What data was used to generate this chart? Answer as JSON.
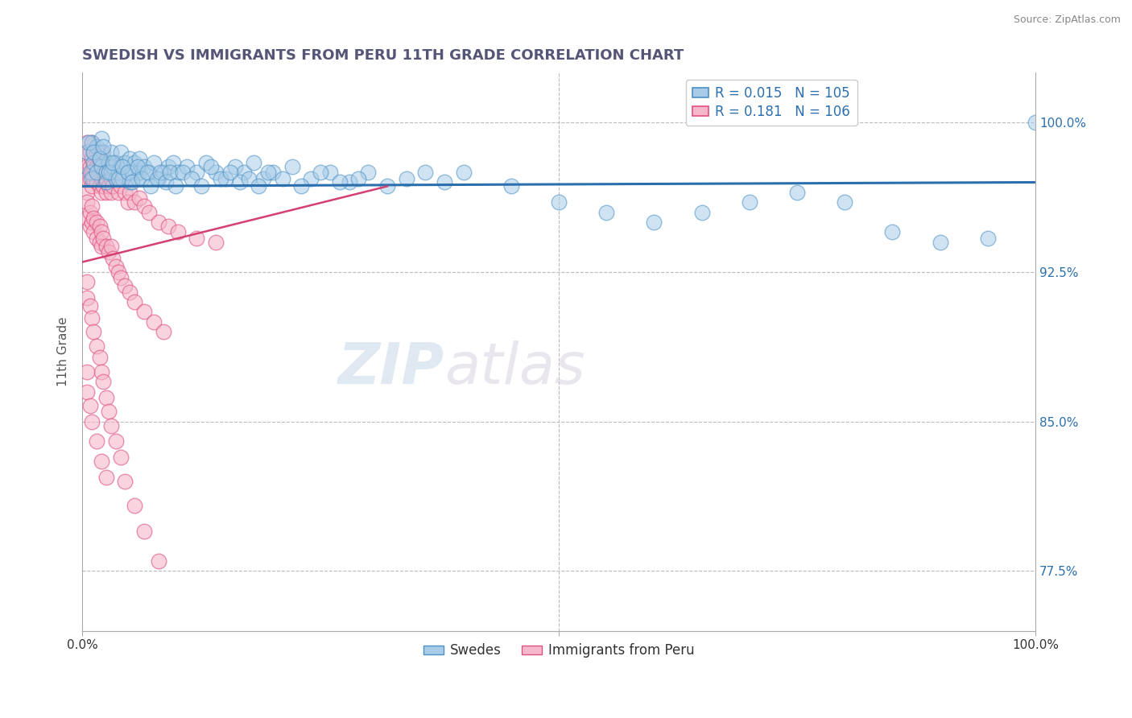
{
  "title": "SWEDISH VS IMMIGRANTS FROM PERU 11TH GRADE CORRELATION CHART",
  "source": "Source: ZipAtlas.com",
  "ylabel": "11th Grade",
  "y_ticks": [
    0.775,
    0.85,
    0.925,
    1.0
  ],
  "y_tick_labels": [
    "77.5%",
    "85.0%",
    "92.5%",
    "100.0%"
  ],
  "x_range": [
    0.0,
    1.0
  ],
  "y_range": [
    0.745,
    1.025
  ],
  "legend_blue_R": "0.015",
  "legend_blue_N": "105",
  "legend_pink_R": "0.181",
  "legend_pink_N": "106",
  "legend_blue_label": "Swedes",
  "legend_pink_label": "Immigrants from Peru",
  "blue_color": "#a8cce8",
  "pink_color": "#f5b8cb",
  "blue_edge_color": "#4a90c4",
  "pink_edge_color": "#e05080",
  "blue_line_color": "#2c6fad",
  "pink_line_color": "#d44070",
  "watermark_zip": "ZIP",
  "watermark_atlas": "atlas",
  "blue_trend_y0": 0.968,
  "blue_trend_y1": 0.97,
  "pink_trend_x0": 0.0,
  "pink_trend_y0": 0.93,
  "pink_trend_x1": 0.32,
  "pink_trend_y1": 0.968,
  "blue_scatter_x": [
    0.005,
    0.008,
    0.01,
    0.01,
    0.012,
    0.015,
    0.015,
    0.018,
    0.02,
    0.02,
    0.022,
    0.025,
    0.025,
    0.028,
    0.03,
    0.03,
    0.032,
    0.035,
    0.035,
    0.038,
    0.04,
    0.04,
    0.042,
    0.045,
    0.048,
    0.05,
    0.05,
    0.052,
    0.055,
    0.058,
    0.06,
    0.06,
    0.065,
    0.07,
    0.075,
    0.08,
    0.085,
    0.09,
    0.095,
    0.1,
    0.11,
    0.12,
    0.13,
    0.14,
    0.15,
    0.16,
    0.17,
    0.18,
    0.19,
    0.2,
    0.22,
    0.24,
    0.26,
    0.28,
    0.3,
    0.32,
    0.34,
    0.36,
    0.38,
    0.4,
    0.45,
    0.5,
    0.55,
    0.6,
    0.65,
    0.7,
    0.75,
    0.8,
    0.85,
    0.9,
    0.95,
    1.0,
    0.007,
    0.012,
    0.018,
    0.022,
    0.028,
    0.032,
    0.038,
    0.042,
    0.048,
    0.052,
    0.058,
    0.062,
    0.068,
    0.072,
    0.078,
    0.082,
    0.088,
    0.092,
    0.098,
    0.105,
    0.115,
    0.125,
    0.135,
    0.145,
    0.155,
    0.165,
    0.175,
    0.185,
    0.195,
    0.21,
    0.23,
    0.25,
    0.27,
    0.29
  ],
  "blue_scatter_y": [
    0.985,
    0.975,
    0.99,
    0.972,
    0.98,
    0.975,
    0.988,
    0.982,
    0.978,
    0.992,
    0.985,
    0.975,
    0.97,
    0.98,
    0.975,
    0.985,
    0.978,
    0.972,
    0.98,
    0.975,
    0.985,
    0.978,
    0.972,
    0.98,
    0.975,
    0.982,
    0.97,
    0.975,
    0.98,
    0.972,
    0.975,
    0.982,
    0.978,
    0.975,
    0.98,
    0.972,
    0.975,
    0.978,
    0.98,
    0.975,
    0.978,
    0.975,
    0.98,
    0.975,
    0.972,
    0.978,
    0.975,
    0.98,
    0.972,
    0.975,
    0.978,
    0.972,
    0.975,
    0.97,
    0.975,
    0.968,
    0.972,
    0.975,
    0.97,
    0.975,
    0.968,
    0.96,
    0.955,
    0.95,
    0.955,
    0.96,
    0.965,
    0.96,
    0.945,
    0.94,
    0.942,
    1.0,
    0.99,
    0.985,
    0.982,
    0.988,
    0.975,
    0.98,
    0.972,
    0.978,
    0.975,
    0.97,
    0.978,
    0.972,
    0.975,
    0.968,
    0.972,
    0.975,
    0.97,
    0.975,
    0.968,
    0.975,
    0.972,
    0.968,
    0.978,
    0.972,
    0.975,
    0.97,
    0.972,
    0.968,
    0.975,
    0.972,
    0.968,
    0.975,
    0.97,
    0.972
  ],
  "pink_scatter_x": [
    0.005,
    0.005,
    0.005,
    0.005,
    0.005,
    0.008,
    0.008,
    0.008,
    0.01,
    0.01,
    0.01,
    0.01,
    0.012,
    0.012,
    0.012,
    0.015,
    0.015,
    0.015,
    0.018,
    0.018,
    0.018,
    0.02,
    0.02,
    0.02,
    0.02,
    0.022,
    0.022,
    0.022,
    0.025,
    0.025,
    0.025,
    0.028,
    0.028,
    0.03,
    0.03,
    0.03,
    0.032,
    0.035,
    0.038,
    0.04,
    0.042,
    0.045,
    0.048,
    0.05,
    0.055,
    0.06,
    0.065,
    0.07,
    0.08,
    0.09,
    0.1,
    0.12,
    0.14,
    0.005,
    0.005,
    0.008,
    0.008,
    0.01,
    0.01,
    0.012,
    0.012,
    0.015,
    0.015,
    0.018,
    0.018,
    0.02,
    0.02,
    0.022,
    0.025,
    0.028,
    0.03,
    0.032,
    0.035,
    0.038,
    0.04,
    0.045,
    0.05,
    0.055,
    0.065,
    0.075,
    0.085,
    0.005,
    0.005,
    0.008,
    0.01,
    0.012,
    0.015,
    0.018,
    0.02,
    0.022,
    0.025,
    0.028,
    0.03,
    0.035,
    0.04,
    0.045,
    0.055,
    0.065,
    0.08,
    0.005,
    0.005,
    0.008,
    0.01,
    0.015,
    0.02,
    0.025
  ],
  "pink_scatter_y": [
    0.99,
    0.985,
    0.978,
    0.972,
    0.965,
    0.985,
    0.978,
    0.972,
    0.99,
    0.982,
    0.975,
    0.968,
    0.985,
    0.978,
    0.972,
    0.985,
    0.978,
    0.97,
    0.98,
    0.975,
    0.968,
    0.985,
    0.98,
    0.972,
    0.965,
    0.98,
    0.975,
    0.968,
    0.978,
    0.972,
    0.965,
    0.975,
    0.968,
    0.978,
    0.972,
    0.965,
    0.968,
    0.972,
    0.965,
    0.968,
    0.972,
    0.965,
    0.96,
    0.965,
    0.96,
    0.962,
    0.958,
    0.955,
    0.95,
    0.948,
    0.945,
    0.942,
    0.94,
    0.96,
    0.952,
    0.955,
    0.948,
    0.958,
    0.95,
    0.952,
    0.945,
    0.95,
    0.942,
    0.948,
    0.94,
    0.945,
    0.938,
    0.942,
    0.938,
    0.935,
    0.938,
    0.932,
    0.928,
    0.925,
    0.922,
    0.918,
    0.915,
    0.91,
    0.905,
    0.9,
    0.895,
    0.92,
    0.912,
    0.908,
    0.902,
    0.895,
    0.888,
    0.882,
    0.875,
    0.87,
    0.862,
    0.855,
    0.848,
    0.84,
    0.832,
    0.82,
    0.808,
    0.795,
    0.78,
    0.875,
    0.865,
    0.858,
    0.85,
    0.84,
    0.83,
    0.822
  ]
}
